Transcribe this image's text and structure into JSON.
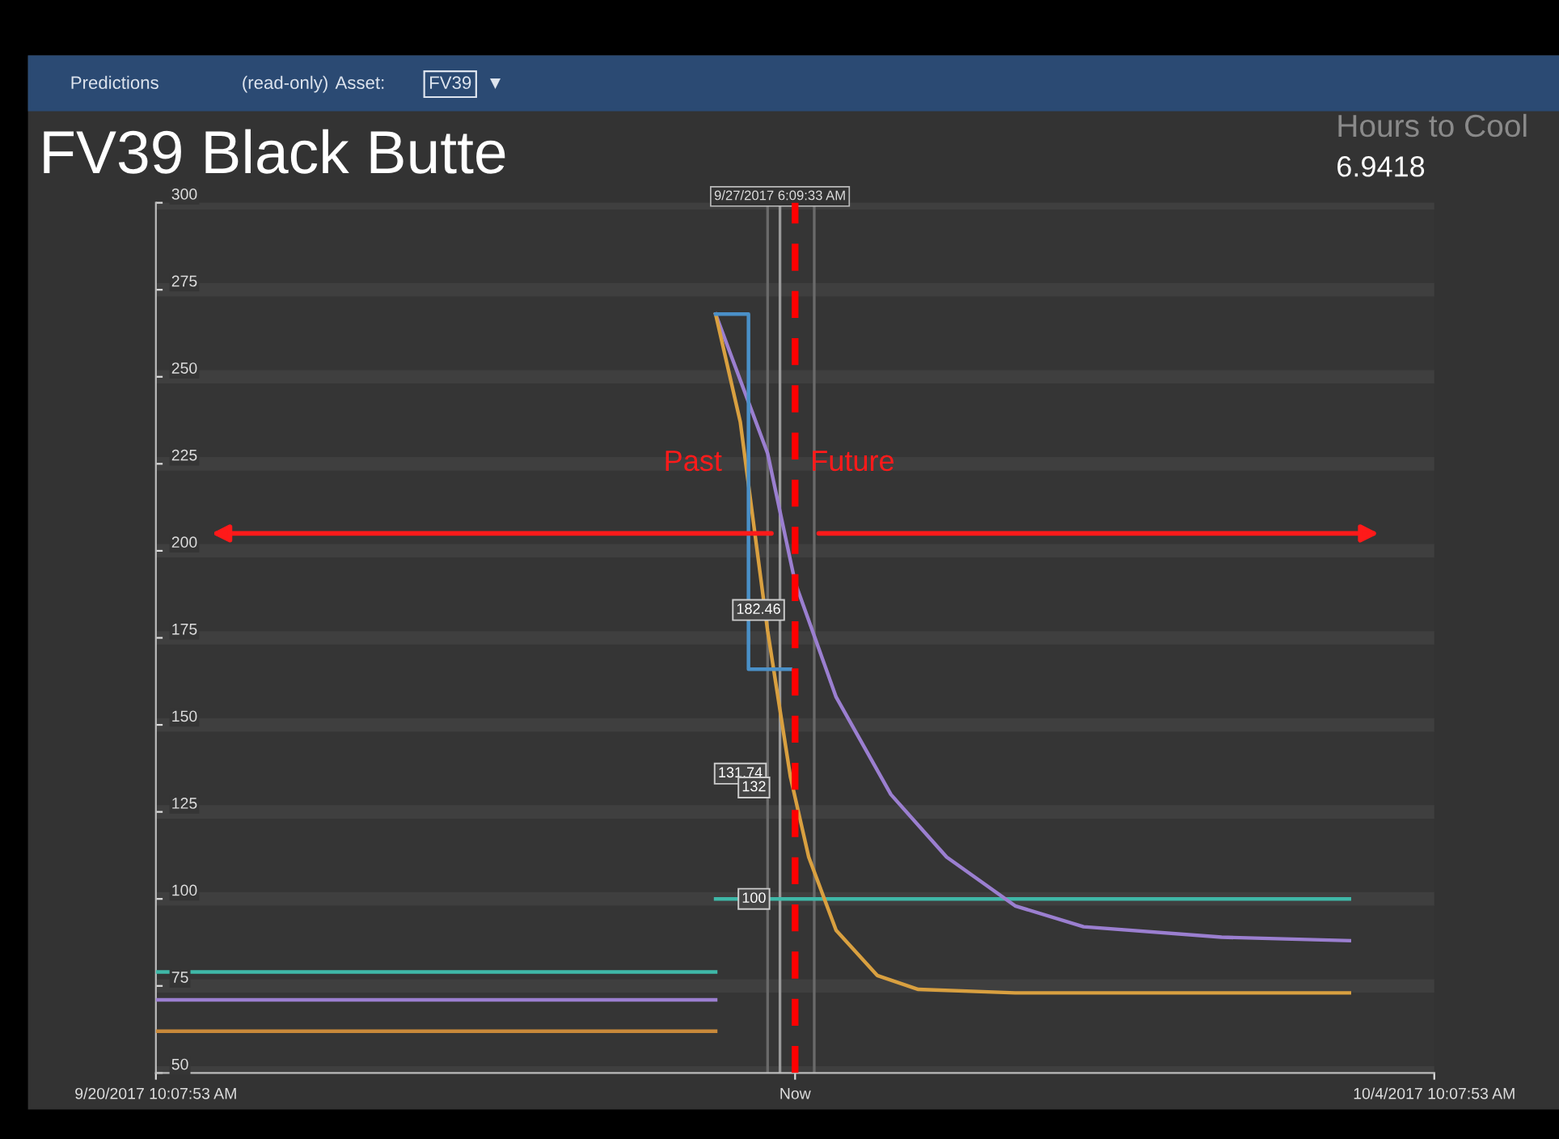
{
  "chart_data": [
    {
      "type": "other",
      "title": "Predictions",
      "annotations": [
        "(read-only)",
        "Asset:",
        "FV39",
        "▼"
      ]
    },
    {
      "type": "line",
      "title": "FV39 Black Butte",
      "xlim": [
        "2017-09-20T10:07:53",
        "2017-10-04T10:07:53"
      ],
      "xticks": [
        {
          "value": "2017-09-20T10:07:53",
          "label": "9/20/2017 10:07:53 AM"
        },
        {
          "value": "2017-09-27T10:07:53",
          "label": "Now"
        },
        {
          "value": "2017-10-04T10:07:53",
          "label": "10/4/2017 10:07:53 AM"
        }
      ],
      "ylim": [
        50,
        300
      ],
      "yticks": [
        50,
        75,
        100,
        125,
        150,
        175,
        200,
        225,
        250,
        275,
        300
      ],
      "grid": "y",
      "marker": "none",
      "line_style": "solid",
      "series": [
        {
          "color": "#3fb8a8",
          "x": [
            "2017-09-20T10:07:53",
            "2017-09-26T13:15"
          ],
          "values": [
            79,
            79
          ]
        },
        {
          "color": "#9b7fd0",
          "x": [
            "2017-09-20T10:07:53",
            "2017-09-26T13:15"
          ],
          "values": [
            71,
            71
          ]
        },
        {
          "color": "#c8893a",
          "x": [
            "2017-09-20T10:07:53",
            "2017-09-26T13:15"
          ],
          "values": [
            62,
            62
          ]
        },
        {
          "color": "#3fb8a8",
          "x": [
            "2017-09-26T13:15",
            "2017-10-03T11:49"
          ],
          "values": [
            100,
            100
          ]
        },
        {
          "color": "#9b7fd0",
          "x": [
            "2017-09-26T13:15",
            "2017-09-27T02:55",
            "2017-09-27T10:07",
            "2017-09-27T20:55",
            "2017-09-28T11:19",
            "2017-09-29T01:58",
            "2017-09-29T19:58",
            "2017-09-30T13:58",
            "2017-10-02T02:13",
            "2017-10-03T11:49"
          ],
          "values": [
            268,
            228,
            191,
            158,
            130,
            112,
            98,
            92,
            89,
            88
          ]
        },
        {
          "color": "#d9a040",
          "x": [
            "2017-09-26T13:15",
            "2017-09-26T19:44",
            "2017-09-27T02:55",
            "2017-09-27T08:55",
            "2017-09-27T13:43",
            "2017-09-27T20:55",
            "2017-09-28T07:43",
            "2017-09-28T18:31",
            "2017-09-29T19:58",
            "2017-10-03T11:49"
          ],
          "values": [
            268,
            237,
            177,
            135,
            112,
            91,
            78,
            74,
            73,
            73
          ]
        },
        {
          "color": "#4a90c8",
          "x": [
            "2017-09-26T13:15",
            "2017-09-26T21:53",
            "2017-09-26T21:53",
            "2017-09-27T08:55"
          ],
          "values": [
            268,
            268,
            166,
            166
          ]
        }
      ],
      "ref_lines": [
        {
          "axis": "x",
          "value": "2017-09-27T02:55",
          "color": "#6a6a6a"
        },
        {
          "axis": "x",
          "value": "2017-09-27T06:09:33",
          "color": "#9a9a9a",
          "label": "9/27/2017 6:09:33 AM"
        },
        {
          "axis": "x",
          "value": "2017-09-27T15:10",
          "color": "#6a6a6a"
        },
        {
          "axis": "x",
          "value": "2017-09-27T10:07:53",
          "color": "#ff0000",
          "line_style": "dashed"
        }
      ],
      "annotations": [
        "Past",
        "Future",
        {
          "text": "182.46",
          "x": "2017-09-27T00:31",
          "y": 183
        },
        {
          "text": "131.74",
          "x": "2017-09-26T19:44",
          "y": 136
        },
        {
          "text": "132",
          "x": "2017-09-26T23:19",
          "y": 132
        },
        {
          "text": "100",
          "x": "2017-09-26T23:19",
          "y": 100
        }
      ]
    },
    {
      "type": "other",
      "title": "Hours to Cool",
      "annotations": [
        "6.9418"
      ]
    }
  ]
}
